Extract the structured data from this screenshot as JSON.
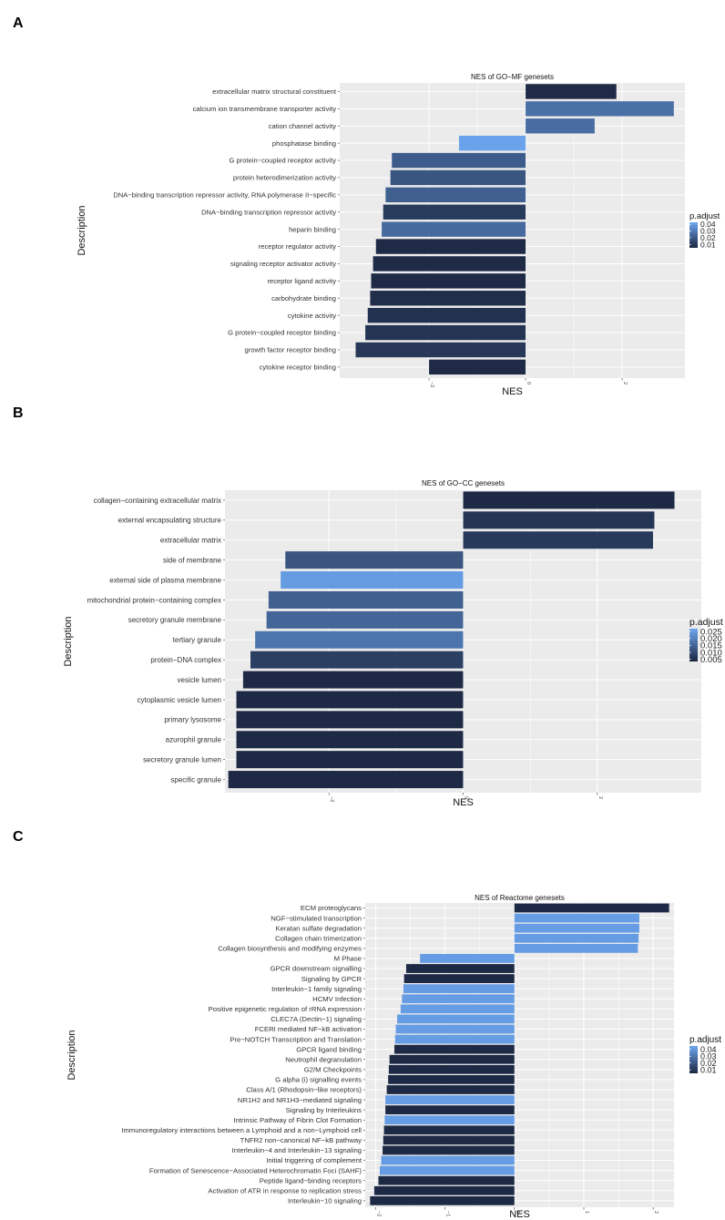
{
  "panel_letters": [
    "A",
    "B",
    "C"
  ],
  "legend_title": "p.adjust",
  "colors": {
    "low": "#1c2741",
    "high": "#6ca6f0",
    "panel_bg": "#ebebeb",
    "grid": "#ffffff"
  },
  "chart_data": [
    {
      "type": "bar",
      "orientation": "horizontal",
      "title": "NES of GO−MF genesets",
      "xlabel": "NES",
      "ylabel": "Description",
      "xlim": [
        -3.85,
        3.3
      ],
      "xticks": [
        -2,
        0,
        2
      ],
      "tick_labels": [
        "−2",
        "0",
        "2"
      ],
      "legend": {
        "title": "p.adjust",
        "range": [
          0.005,
          0.043
        ],
        "ticks": [
          0.04,
          0.03,
          0.02,
          0.01
        ],
        "tick_labels": [
          "0.04",
          "0.03",
          "0.02",
          "0.01"
        ]
      },
      "categories": [
        "extracellular matrix structural constituent",
        "calcium ion transmembrane transporter activity",
        "cation channel activity",
        "phosphatase binding",
        "G protein−coupled receptor activity",
        "protein heterodimerization activity",
        "DNA−binding transcription repressor activity, RNA polymerase II−specific",
        "DNA−binding transcription repressor activity",
        "heparin binding",
        "receptor regulator activity",
        "signaling receptor activator activity",
        "receptor ligand activity",
        "carbohydrate binding",
        "cytokine activity",
        "G protein−coupled receptor binding",
        "growth factor receptor binding",
        "cytokine receptor binding"
      ],
      "values": [
        1.88,
        3.07,
        1.43,
        -1.38,
        -2.77,
        -2.8,
        -2.9,
        -2.95,
        -2.98,
        -3.1,
        -3.16,
        -3.2,
        -3.22,
        -3.27,
        -3.32,
        -3.52,
        -2.0
      ],
      "padjust": [
        0.006,
        0.027,
        0.026,
        0.042,
        0.021,
        0.019,
        0.022,
        0.011,
        0.025,
        0.006,
        0.006,
        0.006,
        0.007,
        0.008,
        0.009,
        0.01,
        0.006
      ]
    },
    {
      "type": "bar",
      "orientation": "horizontal",
      "title": "NES of GO−CC genesets",
      "xlabel": "NES",
      "ylabel": "Description",
      "xlim": [
        -3.55,
        3.55
      ],
      "xticks": [
        -2,
        0,
        2
      ],
      "tick_labels": [
        "−2",
        "0",
        "2"
      ],
      "legend": {
        "title": "p.adjust",
        "range": [
          0.0035,
          0.027
        ],
        "ticks": [
          0.025,
          0.02,
          0.015,
          0.01,
          0.005
        ],
        "tick_labels": [
          "0.025",
          "0.020",
          "0.015",
          "0.010",
          "0.005"
        ]
      },
      "categories": [
        "collagen−containing extracellular matrix",
        "external encapsulating structure",
        "extracellular matrix",
        "side of membrane",
        "external side of plasma membrane",
        "mitochondrial protein−containing complex",
        "secretory granule membrane",
        "tertiary granule",
        "protein−DNA complex",
        "vesicle lumen",
        "cytoplasmic vesicle lumen",
        "primary lysosome",
        "azurophil granule",
        "secretory granule lumen",
        "specific granule"
      ],
      "values": [
        3.15,
        2.85,
        2.83,
        -2.65,
        -2.72,
        -2.9,
        -2.93,
        -3.1,
        -3.17,
        -3.28,
        -3.38,
        -3.38,
        -3.38,
        -3.38,
        -3.5
      ],
      "padjust": [
        0.004,
        0.006,
        0.007,
        0.012,
        0.025,
        0.014,
        0.015,
        0.018,
        0.008,
        0.004,
        0.004,
        0.004,
        0.004,
        0.004,
        0.004
      ]
    },
    {
      "type": "bar",
      "orientation": "horizontal",
      "title": "NES of Reactome genesets",
      "xlabel": "NES",
      "ylabel": "Description",
      "xlim": [
        -2.15,
        2.3
      ],
      "xticks": [
        -2,
        -1,
        0,
        1,
        2
      ],
      "tick_labels": [
        "−2",
        "−1",
        "0",
        "1",
        "2"
      ],
      "legend": {
        "title": "p.adjust",
        "range": [
          0.005,
          0.045
        ],
        "ticks": [
          0.04,
          0.03,
          0.02,
          0.01
        ],
        "tick_labels": [
          "0.04",
          "0.03",
          "0.02",
          "0.01"
        ]
      },
      "categories": [
        "ECM proteoglycans",
        "NGF−stimulated transcription",
        "Keratan sulfate degradation",
        "Collagen chain trimerization",
        "Collagen biosynthesis and modifying enzymes",
        "M Phase",
        "GPCR downstream signalling",
        "Signaling by GPCR",
        "Interleukin−1 family signaling",
        "HCMV Infection",
        "Positive epigenetic regulation of rRNA expression",
        "CLEC7A (Dectin−1) signaling",
        "FCERI mediated NF−kB activation",
        "Pre−NOTCH Transcription and Translation",
        "GPCR ligand binding",
        "Neutrophil degranulation",
        "G2/M Checkpoints",
        "G alpha (i) signalling events",
        "Class A/1 (Rhodopsin−like receptors)",
        "NR1H2 and NR1H3−mediated signaling",
        "Signaling by Interleukins",
        "Intrinsic Pathway of Fibrin Clot Formation",
        "Immunoregulatory interactions between a Lymphoid and a non−Lymphoid cell",
        "TNFR2 non−canonical NF−kB pathway",
        "Interleukin−4 and Interleukin−13 signaling",
        "Initial triggering of complement",
        "Formation of Senescence−Associated Heterochromatin Foci (SAHF)",
        "Peptide ligand−binding receptors",
        "Activation of ATR in response to replication stress",
        "Interleukin−10 signaling"
      ],
      "values": [
        2.23,
        1.8,
        1.8,
        1.79,
        1.78,
        -1.36,
        -1.56,
        -1.59,
        -1.6,
        -1.62,
        -1.64,
        -1.69,
        -1.71,
        -1.72,
        -1.73,
        -1.8,
        -1.81,
        -1.82,
        -1.84,
        -1.86,
        -1.86,
        -1.87,
        -1.88,
        -1.89,
        -1.9,
        -1.92,
        -1.94,
        -1.96,
        -2.02,
        -2.08
      ],
      "padjust": [
        0.006,
        0.042,
        0.042,
        0.042,
        0.042,
        0.042,
        0.006,
        0.006,
        0.042,
        0.042,
        0.042,
        0.042,
        0.042,
        0.042,
        0.006,
        0.006,
        0.006,
        0.006,
        0.006,
        0.042,
        0.006,
        0.042,
        0.006,
        0.006,
        0.006,
        0.042,
        0.042,
        0.006,
        0.006,
        0.006
      ]
    }
  ]
}
